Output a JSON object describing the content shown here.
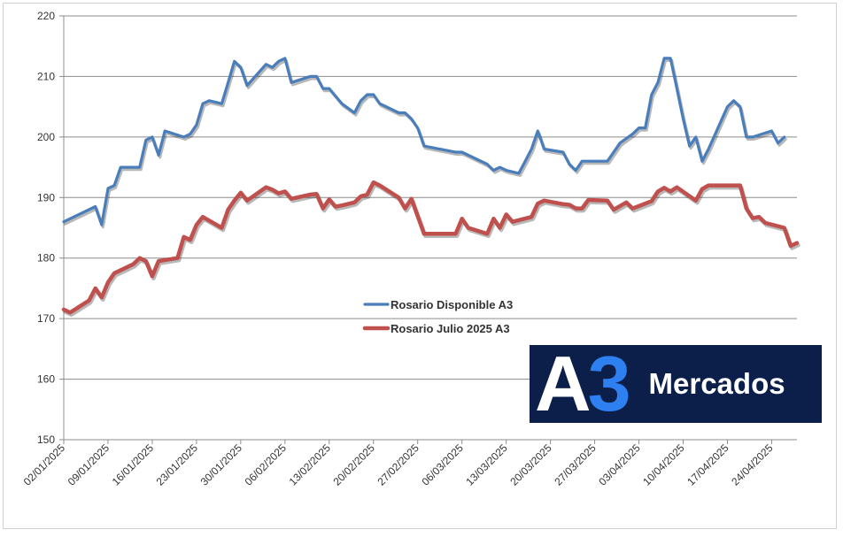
{
  "chart_data": {
    "type": "line",
    "title": "",
    "xlabel": "",
    "ylabel": "",
    "ylim": [
      150,
      220
    ],
    "yticks": [
      "150",
      "160",
      "170",
      "180",
      "190",
      "200",
      "210",
      "220"
    ],
    "xticks": [
      "02/01/2025",
      "09/01/2025",
      "16/01/2025",
      "23/01/2025",
      "30/01/2025",
      "06/02/2025",
      "13/02/2025",
      "20/02/2025",
      "27/02/2025",
      "06/03/2025",
      "13/03/2025",
      "20/03/2025",
      "27/03/2025",
      "03/04/2025",
      "10/04/2025",
      "17/04/2025",
      "24/04/2025"
    ],
    "grid": "horizontal",
    "legend_position": "center",
    "series": [
      {
        "name": "Rosario Disponible A3",
        "color": "#4a7ebb",
        "points": [
          [
            0,
            186
          ],
          [
            5,
            188.5
          ],
          [
            6,
            185.5
          ],
          [
            7,
            191.5
          ],
          [
            8,
            192
          ],
          [
            9,
            195
          ],
          [
            12,
            195
          ],
          [
            13,
            199.5
          ],
          [
            14,
            200
          ],
          [
            15,
            197
          ],
          [
            16,
            201
          ],
          [
            19,
            200
          ],
          [
            20,
            200.5
          ],
          [
            21,
            202
          ],
          [
            22,
            205.5
          ],
          [
            23,
            206
          ],
          [
            25,
            205.5
          ],
          [
            26,
            209
          ],
          [
            27,
            212.5
          ],
          [
            28,
            211.5
          ],
          [
            29,
            208.5
          ],
          [
            32,
            212
          ],
          [
            33,
            211.5
          ],
          [
            34,
            212.5
          ],
          [
            35,
            213
          ],
          [
            36,
            209
          ],
          [
            39,
            210
          ],
          [
            40,
            210
          ],
          [
            41,
            208
          ],
          [
            42,
            208
          ],
          [
            44,
            205.5
          ],
          [
            46,
            204
          ],
          [
            47,
            206
          ],
          [
            48,
            207
          ],
          [
            49,
            207
          ],
          [
            50,
            205.5
          ],
          [
            53,
            204
          ],
          [
            54,
            204
          ],
          [
            55,
            203
          ],
          [
            56,
            201.5
          ],
          [
            57,
            198.5
          ],
          [
            62,
            197.5
          ],
          [
            63,
            197.5
          ],
          [
            67,
            195.5
          ],
          [
            68,
            194.5
          ],
          [
            69,
            195
          ],
          [
            70,
            194.5
          ],
          [
            72,
            194
          ],
          [
            73,
            196
          ],
          [
            74,
            198
          ],
          [
            75,
            201
          ],
          [
            76,
            198
          ],
          [
            79,
            197.5
          ],
          [
            80,
            195.5
          ],
          [
            81,
            194.5
          ],
          [
            82,
            196
          ],
          [
            85,
            196
          ],
          [
            86,
            196
          ],
          [
            87,
            197.5
          ],
          [
            88,
            199
          ],
          [
            90,
            200.5
          ],
          [
            91,
            201.5
          ],
          [
            92,
            201.5
          ],
          [
            93,
            207
          ],
          [
            94,
            209
          ],
          [
            95,
            213
          ],
          [
            96,
            213
          ],
          [
            97,
            208
          ],
          [
            98,
            203
          ],
          [
            99,
            198.5
          ],
          [
            100,
            200
          ],
          [
            101,
            196
          ],
          [
            102,
            198
          ],
          [
            105,
            205
          ],
          [
            106,
            206
          ],
          [
            107,
            205
          ],
          [
            108,
            200
          ],
          [
            109,
            200
          ],
          [
            112,
            201
          ],
          [
            113,
            199
          ],
          [
            114,
            200
          ]
        ]
      },
      {
        "name": "Rosario Julio 2025 A3",
        "color": "#c0504d",
        "points": [
          [
            0,
            171.5
          ],
          [
            1,
            171
          ],
          [
            4,
            173
          ],
          [
            5,
            175
          ],
          [
            6,
            173.5
          ],
          [
            7,
            176
          ],
          [
            8,
            177.5
          ],
          [
            11,
            179
          ],
          [
            12,
            180
          ],
          [
            13,
            179.5
          ],
          [
            14,
            177
          ],
          [
            15,
            179.5
          ],
          [
            18,
            180
          ],
          [
            19,
            183.5
          ],
          [
            20,
            183
          ],
          [
            21,
            185.5
          ],
          [
            22,
            186.8
          ],
          [
            23,
            186.2
          ],
          [
            25,
            185
          ],
          [
            26,
            188
          ],
          [
            27,
            189.5
          ],
          [
            28,
            190.8
          ],
          [
            29,
            189.5
          ],
          [
            32,
            191.7
          ],
          [
            33,
            191.3
          ],
          [
            34,
            190.7
          ],
          [
            35,
            191
          ],
          [
            36,
            189.8
          ],
          [
            39,
            190.5
          ],
          [
            40,
            190.6
          ],
          [
            41,
            188.2
          ],
          [
            42,
            189.7
          ],
          [
            43,
            188.5
          ],
          [
            44,
            188.7
          ],
          [
            46,
            189.2
          ],
          [
            47,
            190.2
          ],
          [
            48,
            190.5
          ],
          [
            49,
            192.5
          ],
          [
            50,
            192
          ],
          [
            53,
            190
          ],
          [
            54,
            188.2
          ],
          [
            55,
            189.8
          ],
          [
            57,
            184
          ],
          [
            61,
            184
          ],
          [
            62,
            184
          ],
          [
            63,
            186.5
          ],
          [
            64,
            185
          ],
          [
            67,
            184
          ],
          [
            68,
            186.5
          ],
          [
            69,
            185
          ],
          [
            70,
            187.2
          ],
          [
            71,
            186
          ],
          [
            74,
            186.8
          ],
          [
            75,
            189
          ],
          [
            76,
            189.5
          ],
          [
            79,
            188.9
          ],
          [
            80,
            188.8
          ],
          [
            81,
            188.2
          ],
          [
            82,
            188.2
          ],
          [
            83,
            189.6
          ],
          [
            86,
            189.5
          ],
          [
            87,
            188
          ],
          [
            89,
            189.2
          ],
          [
            90,
            188.2
          ],
          [
            92,
            189
          ],
          [
            93,
            189.4
          ],
          [
            94,
            191
          ],
          [
            95,
            191.6
          ],
          [
            96,
            191
          ],
          [
            97,
            191.7
          ],
          [
            100,
            189.5
          ],
          [
            101,
            191.4
          ],
          [
            102,
            192
          ],
          [
            107,
            192
          ],
          [
            108,
            188.2
          ],
          [
            109,
            186.6
          ],
          [
            110,
            186.8
          ],
          [
            111,
            185.8
          ],
          [
            114,
            185
          ],
          [
            115,
            182
          ],
          [
            116,
            182.5
          ]
        ]
      }
    ]
  },
  "logo": {
    "text": "A3 Mercados",
    "primary": "A",
    "numeral": "3",
    "word": "Mercados"
  }
}
